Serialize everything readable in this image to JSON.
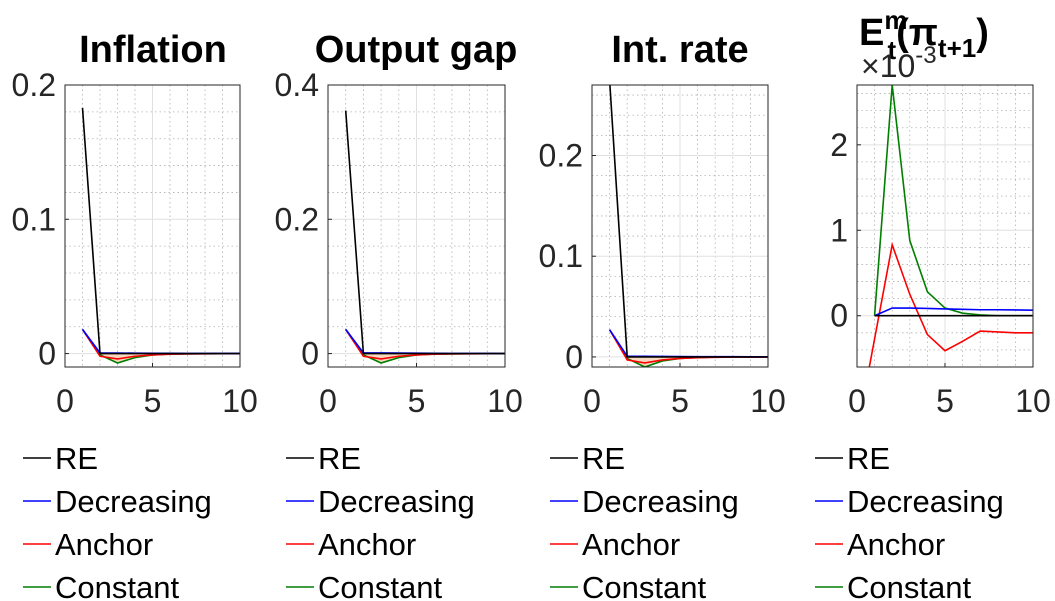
{
  "chart_data": [
    {
      "type": "line",
      "title": "Inflation",
      "xlim": [
        0,
        10
      ],
      "ylim": [
        -0.01,
        0.2
      ],
      "xticks": [
        0,
        5,
        10
      ],
      "yticks": [
        0,
        0.1,
        0.2
      ],
      "ytick_labels": [
        "0",
        "0.1",
        "0.2"
      ],
      "grid": true,
      "legend": "below",
      "series": [
        {
          "name": "RE",
          "color": "#000000",
          "x": [
            1,
            2,
            3,
            4,
            5,
            6,
            7,
            8,
            9,
            10
          ],
          "y": [
            0.183,
            0,
            0,
            0,
            0,
            0,
            0,
            0,
            0,
            0
          ]
        },
        {
          "name": "Decreasing",
          "color": "#0000ff",
          "x": [
            1,
            2,
            3,
            4,
            5,
            6,
            7,
            8,
            9,
            10
          ],
          "y": [
            0.018,
            0.0005,
            0.0004,
            0.0003,
            0.0002,
            0.0002,
            0.0001,
            0.0001,
            0.0001,
            0.0001
          ]
        },
        {
          "name": "Anchor",
          "color": "#ff0000",
          "x": [
            1,
            2,
            3,
            4,
            5,
            6,
            7,
            8,
            9,
            10
          ],
          "y": [
            0.018,
            -0.002,
            -0.004,
            -0.002,
            -0.001,
            -0.0005,
            -0.0003,
            -0.0002,
            -0.0001,
            -0.0001
          ]
        },
        {
          "name": "Constant",
          "color": "#007f00",
          "x": [
            1,
            2,
            3,
            4,
            5,
            6,
            7,
            8,
            9,
            10
          ],
          "y": [
            0.018,
            -0.001,
            -0.007,
            -0.003,
            -0.001,
            -0.0004,
            -0.0002,
            -0.0001,
            0,
            0
          ]
        }
      ]
    },
    {
      "type": "line",
      "title": "Output gap",
      "xlim": [
        0,
        10
      ],
      "ylim": [
        -0.02,
        0.4
      ],
      "xticks": [
        0,
        5,
        10
      ],
      "yticks": [
        0,
        0.2,
        0.4
      ],
      "ytick_labels": [
        "0",
        "0.2",
        "0.4"
      ],
      "grid": true,
      "legend": "below",
      "series": [
        {
          "name": "RE",
          "color": "#000000",
          "x": [
            1,
            2,
            3,
            4,
            5,
            6,
            7,
            8,
            9,
            10
          ],
          "y": [
            0.362,
            0,
            0,
            0,
            0,
            0,
            0,
            0,
            0,
            0
          ]
        },
        {
          "name": "Decreasing",
          "color": "#0000ff",
          "x": [
            1,
            2,
            3,
            4,
            5,
            6,
            7,
            8,
            9,
            10
          ],
          "y": [
            0.036,
            0.001,
            0.001,
            0.0008,
            0.0006,
            0.0004,
            0.0003,
            0.0002,
            0.0002,
            0.0001
          ]
        },
        {
          "name": "Anchor",
          "color": "#ff0000",
          "x": [
            1,
            2,
            3,
            4,
            5,
            6,
            7,
            8,
            9,
            10
          ],
          "y": [
            0.036,
            -0.004,
            -0.008,
            -0.004,
            -0.002,
            -0.001,
            -0.0006,
            -0.0003,
            -0.0002,
            -0.0001
          ]
        },
        {
          "name": "Constant",
          "color": "#007f00",
          "x": [
            1,
            2,
            3,
            4,
            5,
            6,
            7,
            8,
            9,
            10
          ],
          "y": [
            0.036,
            -0.002,
            -0.014,
            -0.006,
            -0.002,
            -0.0008,
            -0.0003,
            -0.0001,
            0,
            0
          ]
        }
      ]
    },
    {
      "type": "line",
      "title": "Int. rate",
      "xlim": [
        0,
        10
      ],
      "ylim": [
        -0.01,
        0.27
      ],
      "xticks": [
        0,
        5,
        10
      ],
      "yticks": [
        0,
        0.1,
        0.2
      ],
      "ytick_labels": [
        "0",
        "0.1",
        "0.2"
      ],
      "grid": true,
      "legend": "below",
      "series": [
        {
          "name": "RE",
          "color": "#000000",
          "x": [
            1,
            2,
            3,
            4,
            5,
            6,
            7,
            8,
            9,
            10
          ],
          "y": [
            0.275,
            0,
            0,
            0,
            0,
            0,
            0,
            0,
            0,
            0
          ]
        },
        {
          "name": "Decreasing",
          "color": "#0000ff",
          "x": [
            1,
            2,
            3,
            4,
            5,
            6,
            7,
            8,
            9,
            10
          ],
          "y": [
            0.027,
            0.0007,
            0.0006,
            0.0005,
            0.0004,
            0.0003,
            0.0002,
            0.0002,
            0.0001,
            0.0001
          ]
        },
        {
          "name": "Anchor",
          "color": "#ff0000",
          "x": [
            1,
            2,
            3,
            4,
            5,
            6,
            7,
            8,
            9,
            10
          ],
          "y": [
            0.027,
            -0.003,
            -0.006,
            -0.003,
            -0.0015,
            -0.0008,
            -0.0004,
            -0.0002,
            -0.0001,
            -0.0001
          ]
        },
        {
          "name": "Constant",
          "color": "#007f00",
          "x": [
            1,
            2,
            3,
            4,
            5,
            6,
            7,
            8,
            9,
            10
          ],
          "y": [
            0.027,
            -0.0015,
            -0.01,
            -0.004,
            -0.0015,
            -0.0006,
            -0.0002,
            -0.0001,
            0,
            0
          ]
        }
      ]
    },
    {
      "type": "line",
      "title": "E_t^m(π_{t+1})",
      "title_main": "E",
      "title_sup": "m",
      "title_sub": "t",
      "title_rest": "(π",
      "title_sub2": "t+1",
      "title_close": ")",
      "exponent_label": "×10",
      "exponent_power": "-3",
      "xlim": [
        0,
        10
      ],
      "ylim": [
        -0.6,
        2.7
      ],
      "xticks": [
        0,
        5,
        10
      ],
      "yticks": [
        0,
        1,
        2
      ],
      "ytick_labels": [
        "0",
        "1",
        "2"
      ],
      "grid": true,
      "legend": "below",
      "series": [
        {
          "name": "RE",
          "color": "#000000",
          "x": [
            1,
            2,
            3,
            4,
            5,
            6,
            7,
            8,
            9,
            10
          ],
          "y": [
            0,
            0,
            0,
            0,
            0,
            0,
            0,
            0,
            0,
            0
          ]
        },
        {
          "name": "Decreasing",
          "color": "#0000ff",
          "x": [
            1,
            2,
            3,
            4,
            5,
            6,
            7,
            8,
            9,
            10
          ],
          "y": [
            0,
            0.09,
            0.09,
            0.085,
            0.08,
            0.075,
            0.07,
            0.07,
            0.068,
            0.065
          ]
        },
        {
          "name": "Anchor",
          "color": "#ff0000",
          "x": [
            0.7,
            2,
            3,
            4,
            5,
            6,
            7,
            8,
            9,
            10
          ],
          "y": [
            -0.6,
            0.83,
            0.25,
            -0.22,
            -0.41,
            -0.3,
            -0.18,
            -0.19,
            -0.2,
            -0.2
          ]
        },
        {
          "name": "Constant",
          "color": "#007f00",
          "x": [
            1,
            2,
            3,
            4,
            5,
            6,
            7,
            8,
            9,
            10
          ],
          "y": [
            0,
            2.7,
            0.88,
            0.28,
            0.09,
            0.03,
            0.01,
            0,
            0,
            0
          ]
        }
      ]
    }
  ]
}
